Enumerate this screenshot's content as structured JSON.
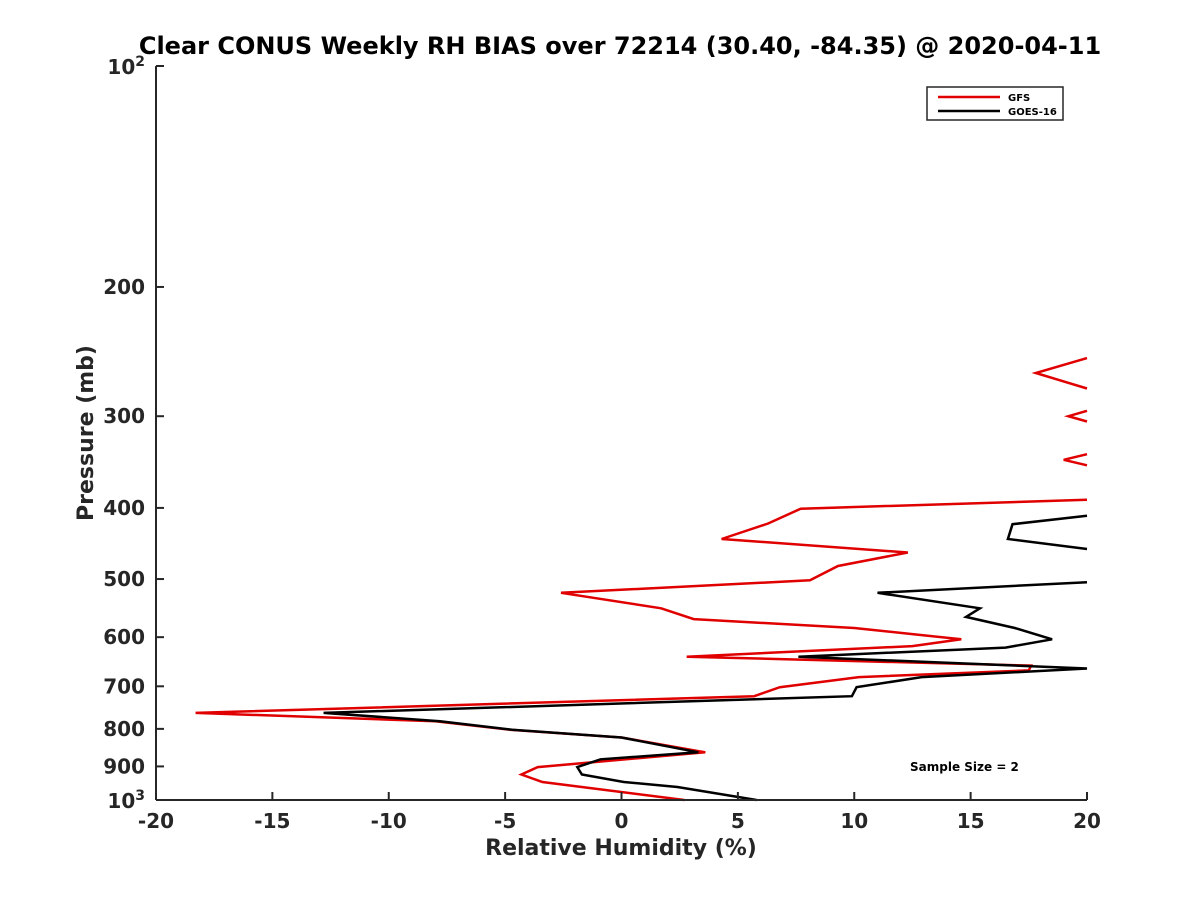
{
  "chart_data": {
    "type": "line",
    "title": "Clear CONUS Weekly RH BIAS over 72214 (30.40, -84.35) @ 2020-04-11",
    "xlabel": "Relative Humidity (%)",
    "ylabel": "Pressure (mb)",
    "xlim": [
      -20,
      20
    ],
    "ylim": [
      100,
      1000
    ],
    "yscale": "log",
    "y_reversed": true,
    "grid": false,
    "legend_position": "top-right",
    "x_ticks": [
      "-20",
      "-15",
      "-10",
      "-5",
      "0",
      "5",
      "10",
      "15",
      "20"
    ],
    "x_tick_values": [
      -20,
      -15,
      -10,
      -5,
      0,
      5,
      10,
      15,
      20
    ],
    "y_tick_values": [
      100,
      200,
      300,
      400,
      500,
      600,
      700,
      800,
      900,
      1000
    ],
    "y_ticks_plain": [
      "200",
      "300",
      "400",
      "500",
      "600",
      "700",
      "800",
      "900"
    ],
    "y_tick_100": {
      "base": "10",
      "exp": "2"
    },
    "y_tick_1000": {
      "base": "10",
      "exp": "3"
    },
    "annotation": "Sample Size = 2",
    "series": [
      {
        "name": "GFS",
        "color": "#e00000",
        "segments": [
          [
            {
              "x": 20,
              "p": 250
            },
            {
              "x": 17.8,
              "p": 262
            },
            {
              "x": 20,
              "p": 275
            }
          ],
          [
            {
              "x": 20,
              "p": 295
            },
            {
              "x": 19.2,
              "p": 300
            },
            {
              "x": 20,
              "p": 305
            }
          ],
          [
            {
              "x": 20,
              "p": 338
            },
            {
              "x": 19.0,
              "p": 344
            },
            {
              "x": 20,
              "p": 350
            }
          ],
          [
            {
              "x": 20,
              "p": 390
            },
            {
              "x": 7.7,
              "p": 401
            },
            {
              "x": 6.3,
              "p": 420
            },
            {
              "x": 4.3,
              "p": 441
            },
            {
              "x": 12.3,
              "p": 460
            },
            {
              "x": 9.3,
              "p": 480
            },
            {
              "x": 8.1,
              "p": 502
            },
            {
              "x": -2.6,
              "p": 522
            },
            {
              "x": 1.7,
              "p": 548
            },
            {
              "x": 3.1,
              "p": 567
            },
            {
              "x": 10.0,
              "p": 583
            },
            {
              "x": 14.6,
              "p": 604
            },
            {
              "x": 12.5,
              "p": 617
            },
            {
              "x": 2.8,
              "p": 638
            },
            {
              "x": 17.6,
              "p": 656
            },
            {
              "x": 17.5,
              "p": 666
            },
            {
              "x": 10.2,
              "p": 680
            },
            {
              "x": 6.8,
              "p": 702
            },
            {
              "x": 5.7,
              "p": 722
            },
            {
              "x": -18.3,
              "p": 761
            },
            {
              "x": -8.0,
              "p": 781
            },
            {
              "x": -4.8,
              "p": 802
            },
            {
              "x": 0.0,
              "p": 822
            },
            {
              "x": 3.6,
              "p": 861
            },
            {
              "x": -3.6,
              "p": 902
            },
            {
              "x": -4.3,
              "p": 923
            },
            {
              "x": -3.4,
              "p": 945
            },
            {
              "x": 2.7,
              "p": 1000
            }
          ]
        ]
      },
      {
        "name": "GOES-16",
        "color": "#000000",
        "segments": [
          [
            {
              "x": 20,
              "p": 410
            },
            {
              "x": 16.8,
              "p": 421
            },
            {
              "x": 16.6,
              "p": 441
            },
            {
              "x": 20,
              "p": 455
            }
          ],
          [
            {
              "x": 20,
              "p": 505
            },
            {
              "x": 11.0,
              "p": 522
            },
            {
              "x": 15.4,
              "p": 548
            },
            {
              "x": 14.8,
              "p": 563
            },
            {
              "x": 16.9,
              "p": 583
            },
            {
              "x": 18.5,
              "p": 604
            },
            {
              "x": 16.5,
              "p": 620
            },
            {
              "x": 7.6,
              "p": 638
            },
            {
              "x": 20,
              "p": 662
            },
            {
              "x": 12.9,
              "p": 680
            },
            {
              "x": 10.1,
              "p": 702
            },
            {
              "x": 9.9,
              "p": 722
            },
            {
              "x": -12.8,
              "p": 761
            },
            {
              "x": -7.8,
              "p": 781
            },
            {
              "x": -4.7,
              "p": 802
            },
            {
              "x": 0.0,
              "p": 822
            },
            {
              "x": 3.3,
              "p": 861
            },
            {
              "x": -0.9,
              "p": 880
            },
            {
              "x": -1.9,
              "p": 902
            },
            {
              "x": -1.7,
              "p": 923
            },
            {
              "x": 0.1,
              "p": 945
            },
            {
              "x": 2.4,
              "p": 960
            },
            {
              "x": 5.8,
              "p": 1000
            }
          ]
        ]
      }
    ]
  }
}
